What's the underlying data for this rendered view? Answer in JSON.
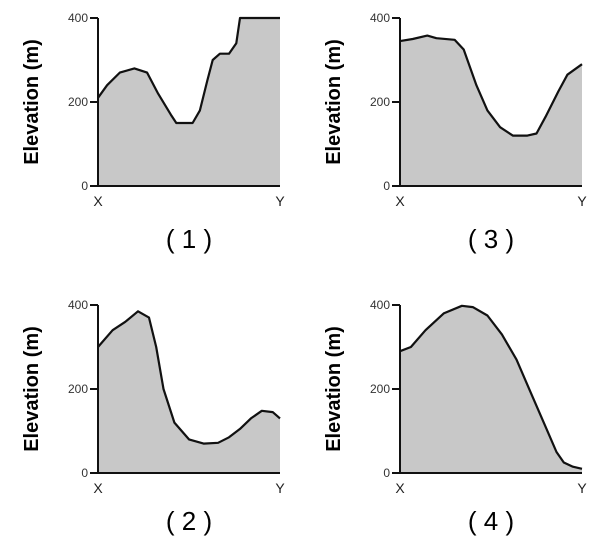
{
  "chart_data": [
    {
      "type": "area",
      "panel_label": "( 1 )",
      "ylabel": "Elevation (m)",
      "x_labels": [
        "X",
        "Y"
      ],
      "y_ticks": [
        0,
        200,
        400
      ],
      "ylim": [
        0,
        400
      ],
      "xlim": [
        0,
        1
      ],
      "fill_color": "#c8c8c8",
      "line_color": "#111111",
      "points": [
        [
          0,
          210
        ],
        [
          0.05,
          240
        ],
        [
          0.12,
          270
        ],
        [
          0.2,
          280
        ],
        [
          0.27,
          270
        ],
        [
          0.33,
          220
        ],
        [
          0.4,
          170
        ],
        [
          0.43,
          150
        ],
        [
          0.52,
          150
        ],
        [
          0.56,
          180
        ],
        [
          0.6,
          250
        ],
        [
          0.63,
          300
        ],
        [
          0.67,
          315
        ],
        [
          0.72,
          315
        ],
        [
          0.76,
          340
        ],
        [
          0.78,
          400
        ],
        [
          1,
          400
        ]
      ]
    },
    {
      "type": "area",
      "panel_label": "( 3 )",
      "ylabel": "Elevation (m)",
      "x_labels": [
        "X",
        "Y"
      ],
      "y_ticks": [
        0,
        200,
        400
      ],
      "ylim": [
        0,
        400
      ],
      "xlim": [
        0,
        1
      ],
      "fill_color": "#c8c8c8",
      "line_color": "#111111",
      "points": [
        [
          0,
          345
        ],
        [
          0.07,
          350
        ],
        [
          0.15,
          358
        ],
        [
          0.2,
          352
        ],
        [
          0.3,
          348
        ],
        [
          0.35,
          325
        ],
        [
          0.42,
          240
        ],
        [
          0.48,
          180
        ],
        [
          0.55,
          140
        ],
        [
          0.62,
          120
        ],
        [
          0.7,
          120
        ],
        [
          0.75,
          125
        ],
        [
          0.8,
          165
        ],
        [
          0.87,
          225
        ],
        [
          0.92,
          265
        ],
        [
          1,
          290
        ]
      ]
    },
    {
      "type": "area",
      "panel_label": "( 2 )",
      "ylabel": "Elevation (m)",
      "x_labels": [
        "X",
        "Y"
      ],
      "y_ticks": [
        0,
        200,
        400
      ],
      "ylim": [
        0,
        400
      ],
      "xlim": [
        0,
        1
      ],
      "fill_color": "#c8c8c8",
      "line_color": "#111111",
      "points": [
        [
          0,
          300
        ],
        [
          0.08,
          340
        ],
        [
          0.15,
          360
        ],
        [
          0.22,
          385
        ],
        [
          0.28,
          370
        ],
        [
          0.32,
          300
        ],
        [
          0.36,
          200
        ],
        [
          0.42,
          120
        ],
        [
          0.5,
          80
        ],
        [
          0.58,
          70
        ],
        [
          0.66,
          72
        ],
        [
          0.72,
          85
        ],
        [
          0.78,
          105
        ],
        [
          0.84,
          130
        ],
        [
          0.9,
          148
        ],
        [
          0.96,
          145
        ],
        [
          1,
          130
        ]
      ]
    },
    {
      "type": "area",
      "panel_label": "( 4 )",
      "ylabel": "Elevation (m)",
      "x_labels": [
        "X",
        "Y"
      ],
      "y_ticks": [
        0,
        200,
        400
      ],
      "ylim": [
        0,
        400
      ],
      "xlim": [
        0,
        1
      ],
      "fill_color": "#c8c8c8",
      "line_color": "#111111",
      "points": [
        [
          0,
          290
        ],
        [
          0.06,
          300
        ],
        [
          0.14,
          340
        ],
        [
          0.24,
          380
        ],
        [
          0.34,
          398
        ],
        [
          0.4,
          395
        ],
        [
          0.48,
          375
        ],
        [
          0.56,
          330
        ],
        [
          0.64,
          270
        ],
        [
          0.72,
          190
        ],
        [
          0.8,
          110
        ],
        [
          0.86,
          50
        ],
        [
          0.9,
          25
        ],
        [
          0.95,
          15
        ],
        [
          1,
          10
        ]
      ]
    }
  ]
}
